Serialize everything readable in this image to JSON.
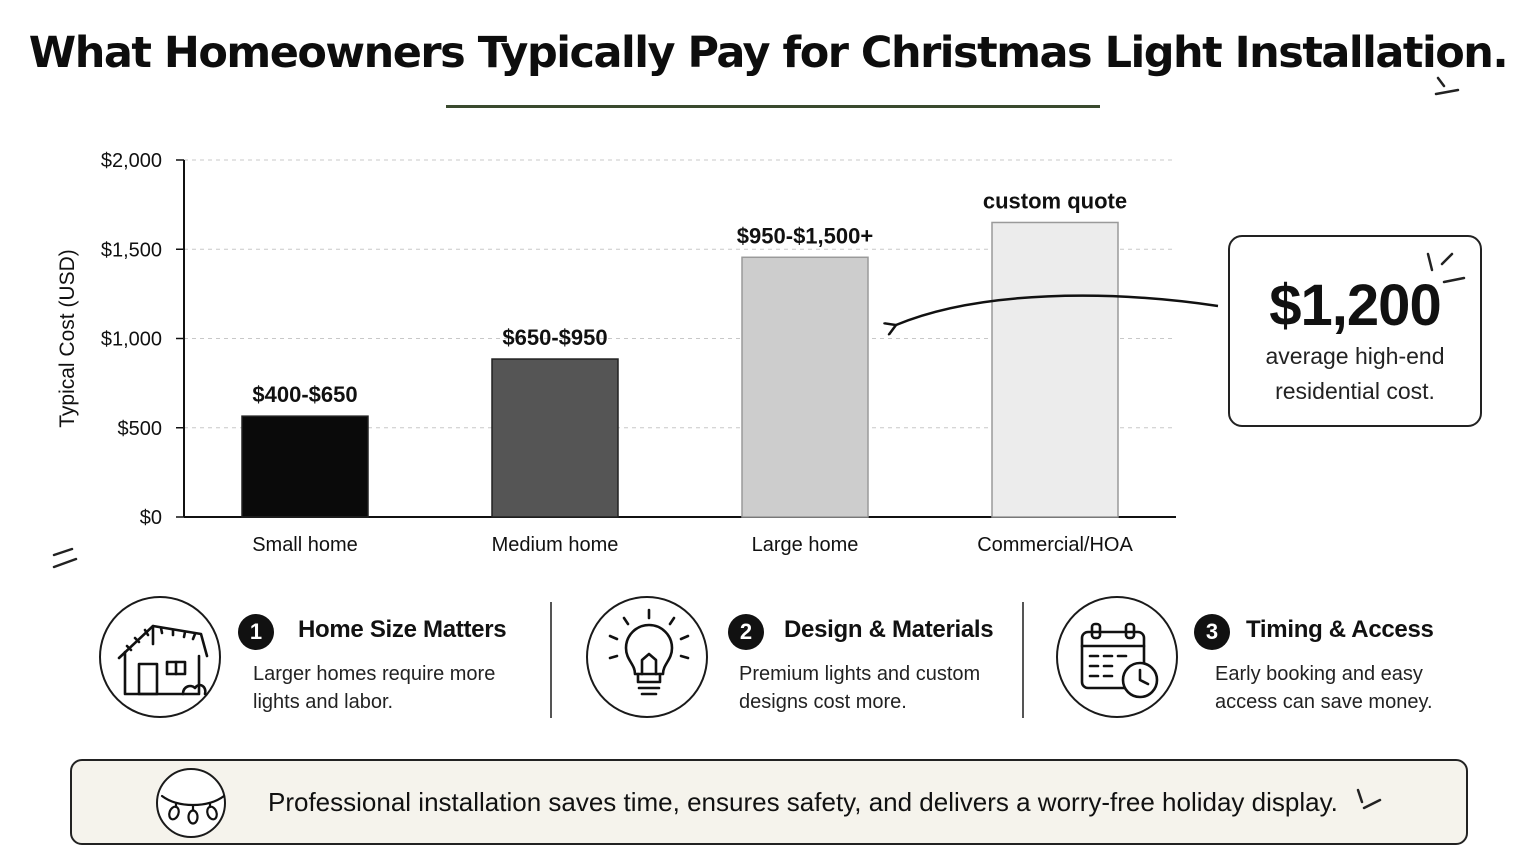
{
  "title": "What Homeowners Typically Pay for Christmas Light Installation.",
  "chart_data": {
    "type": "bar",
    "categories": [
      "Small home",
      "Medium home",
      "Large home",
      "Commercial/HOA"
    ],
    "values": [
      565,
      885,
      1455,
      1650
    ],
    "data_labels": [
      "$400-$650",
      "$650-$950",
      "$950-$1,500+",
      "custom quote"
    ],
    "bar_colors": [
      "#0a0a0a",
      "#555555",
      "#cdcdcd",
      "#ececec"
    ],
    "ylabel": "Typical Cost (USD)",
    "xlabel": "",
    "ylim": [
      0,
      2000
    ],
    "yticks": [
      0,
      500,
      1000,
      1500,
      2000
    ],
    "ytick_labels": [
      "$0",
      "$500",
      "$1,000",
      "$1,500",
      "$2,000"
    ],
    "grid": "horizontal dashed"
  },
  "callout": {
    "value": "$1,200",
    "line1": "average high-end",
    "line2": "residential cost.",
    "points_to": "Large home"
  },
  "factors": [
    {
      "number": "1",
      "title": "Home Size Matters",
      "line1": "Larger homes require more",
      "line2": "lights and labor.",
      "icon": "house-icon"
    },
    {
      "number": "2",
      "title": "Design & Materials",
      "line1": "Premium lights and custom",
      "line2": "designs cost more.",
      "icon": "lightbulb-icon"
    },
    {
      "number": "3",
      "title": "Timing & Access",
      "line1": "Early booking and easy",
      "line2": "access can save money.",
      "icon": "calendar-clock-icon"
    }
  ],
  "banner": {
    "text": "Professional installation saves time, ensures safety, and delivers a worry-free holiday display.",
    "icon": "string-lights-icon"
  }
}
